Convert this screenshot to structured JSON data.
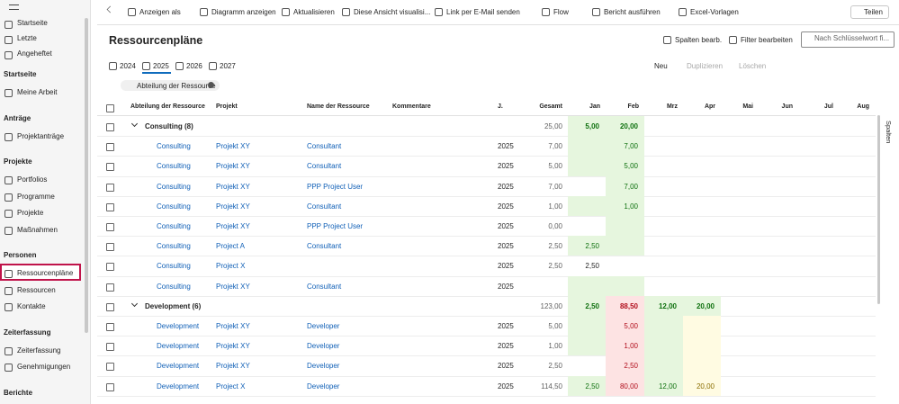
{
  "sidebar": {
    "top": [
      "Startseite",
      "Letzte",
      "Angeheftet"
    ],
    "sections": [
      {
        "title": "Startseite",
        "items": [
          {
            "label": "Meine Arbeit",
            "selected": false
          }
        ]
      },
      {
        "title": "Anträge",
        "items": [
          {
            "label": "Projektanträge",
            "selected": false
          }
        ]
      },
      {
        "title": "Projekte",
        "items": [
          {
            "label": "Portfolios",
            "selected": false
          },
          {
            "label": "Programme",
            "selected": false
          },
          {
            "label": "Projekte",
            "selected": false
          },
          {
            "label": "Maßnahmen",
            "selected": false
          }
        ]
      },
      {
        "title": "Personen",
        "items": [
          {
            "label": "Ressourcenpläne",
            "selected": true
          },
          {
            "label": "Ressourcen",
            "selected": false
          },
          {
            "label": "Kontakte",
            "selected": false
          }
        ]
      },
      {
        "title": "Zeiterfassung",
        "items": [
          {
            "label": "Zeiterfassung",
            "selected": false
          },
          {
            "label": "Genehmigungen",
            "selected": false
          }
        ]
      },
      {
        "title": "Berichte",
        "items": []
      }
    ]
  },
  "toolbar": {
    "buttons": [
      "Anzeigen als",
      "Diagramm anzeigen",
      "Aktualisieren",
      "Diese Ansicht visualisi...",
      "Link per E-Mail senden",
      "Flow",
      "Bericht ausführen",
      "Excel-Vorlagen"
    ],
    "share": "Teilen"
  },
  "view": {
    "title": "Ressourcenpläne",
    "actions": [
      "Spalten bearb.",
      "Filter bearbeiten"
    ],
    "search_placeholder": "Nach Schlüsselwort fi..."
  },
  "tabs": {
    "years": [
      "2024",
      "2025",
      "2026",
      "2027"
    ],
    "active": 1
  },
  "grid_actions": [
    {
      "label": "Neu",
      "enabled": true
    },
    {
      "label": "Duplizieren",
      "enabled": false
    },
    {
      "label": "Löschen",
      "enabled": false
    }
  ],
  "filter_chip": "Abteilung der Ressource",
  "side_panel": "Spalten",
  "table": {
    "columns": [
      "Abteilung der Ressource",
      "Projekt",
      "Name der Ressource",
      "Kommentare",
      "J.",
      "Gesamt",
      "Jan",
      "Feb",
      "Mrz",
      "Apr",
      "Mai",
      "Jun",
      "Jul",
      "Aug"
    ],
    "groups": [
      {
        "label": "Consulting (8)",
        "total": "25,00",
        "months": [
          "5,00",
          "20,00",
          null,
          null,
          null,
          null,
          null,
          null
        ],
        "shades": [
          "#e6f6de",
          "#e6f6de",
          null,
          null,
          null,
          null,
          null,
          null
        ],
        "rows": [
          {
            "department": "Consulting",
            "project": "Projekt XY",
            "resource": "Consultant",
            "year": "2025",
            "total": "7,00",
            "months": [
              null,
              "7,00",
              null,
              null,
              null,
              null,
              null,
              null
            ],
            "shades": [
              "#e6f6de",
              "#e6f6de",
              null,
              null,
              null,
              null,
              null,
              null
            ]
          },
          {
            "department": "Consulting",
            "project": "Projekt XY",
            "resource": "Consultant",
            "year": "2025",
            "total": "5,00",
            "months": [
              null,
              "5,00",
              null,
              null,
              null,
              null,
              null,
              null
            ],
            "shades": [
              "#e6f6de",
              "#e6f6de",
              null,
              null,
              null,
              null,
              null,
              null
            ]
          },
          {
            "department": "Consulting",
            "project": "Projekt XY",
            "resource": "PPP Project User",
            "year": "2025",
            "total": "7,00",
            "months": [
              null,
              "7,00",
              null,
              null,
              null,
              null,
              null,
              null
            ],
            "shades": [
              null,
              "#e6f6de",
              null,
              null,
              null,
              null,
              null,
              null
            ]
          },
          {
            "department": "Consulting",
            "project": "Projekt XY",
            "resource": "Consultant",
            "year": "2025",
            "total": "1,00",
            "months": [
              null,
              "1,00",
              null,
              null,
              null,
              null,
              null,
              null
            ],
            "shades": [
              "#e6f6de",
              "#e6f6de",
              null,
              null,
              null,
              null,
              null,
              null
            ]
          },
          {
            "department": "Consulting",
            "project": "Projekt XY",
            "resource": "PPP Project User",
            "year": "2025",
            "total": "0,00",
            "months": [
              null,
              null,
              null,
              null,
              null,
              null,
              null,
              null
            ],
            "shades": [
              null,
              "#e6f6de",
              null,
              null,
              null,
              null,
              null,
              null
            ]
          },
          {
            "department": "Consulting",
            "project": "Project A",
            "resource": "Consultant",
            "year": "2025",
            "total": "2,50",
            "months": [
              "2,50",
              null,
              null,
              null,
              null,
              null,
              null,
              null
            ],
            "shades": [
              "#e6f6de",
              "#e6f6de",
              null,
              null,
              null,
              null,
              null,
              null
            ]
          },
          {
            "department": "Consulting",
            "project": "Project X",
            "resource": null,
            "year": "2025",
            "total": "2,50",
            "months": [
              "2,50",
              null,
              null,
              null,
              null,
              null,
              null,
              null
            ],
            "shades": [
              null,
              null,
              null,
              null,
              null,
              null,
              null,
              null
            ]
          },
          {
            "department": "Consulting",
            "project": "Projekt XY",
            "resource": "Consultant",
            "year": "2025",
            "total": null,
            "months": [
              null,
              null,
              null,
              null,
              null,
              null,
              null,
              null
            ],
            "shades": [
              "#e6f6de",
              "#e6f6de",
              null,
              null,
              null,
              null,
              null,
              null
            ]
          }
        ]
      },
      {
        "label": "Development (6)",
        "total": "123,00",
        "months": [
          "2,50",
          "88,50",
          "12,00",
          "20,00",
          null,
          null,
          null,
          null
        ],
        "shades": [
          "#e6f6de",
          "#fde3e3",
          "#e6f6de",
          "#e6f6de",
          null,
          null,
          null,
          null
        ],
        "rows": [
          {
            "department": "Development",
            "project": "Projekt XY",
            "resource": "Developer",
            "year": "2025",
            "total": "5,00",
            "months": [
              null,
              "5,00",
              null,
              null,
              null,
              null,
              null,
              null
            ],
            "shades": [
              "#e6f6de",
              "#fde3e3",
              "#e6f6de",
              "#fffbe2",
              null,
              null,
              null,
              null
            ]
          },
          {
            "department": "Development",
            "project": "Projekt XY",
            "resource": "Developer",
            "year": "2025",
            "total": "1,00",
            "months": [
              null,
              "1,00",
              null,
              null,
              null,
              null,
              null,
              null
            ],
            "shades": [
              "#e6f6de",
              "#fde3e3",
              "#e6f6de",
              "#fffbe2",
              null,
              null,
              null,
              null
            ]
          },
          {
            "department": "Development",
            "project": "Projekt XY",
            "resource": "Developer",
            "year": "2025",
            "total": "2,50",
            "months": [
              null,
              "2,50",
              null,
              null,
              null,
              null,
              null,
              null
            ],
            "shades": [
              null,
              "#fde3e3",
              "#e6f6de",
              "#fffbe2",
              null,
              null,
              null,
              null
            ]
          },
          {
            "department": "Development",
            "project": "Project X",
            "resource": "Developer",
            "year": "2025",
            "total": "114,50",
            "months": [
              "2,50",
              "80,00",
              "12,00",
              "20,00",
              null,
              null,
              null,
              null
            ],
            "shades": [
              "#e6f6de",
              "#fde3e3",
              "#e6f6de",
              "#fffbe2",
              null,
              null,
              null,
              null
            ]
          }
        ]
      }
    ]
  }
}
